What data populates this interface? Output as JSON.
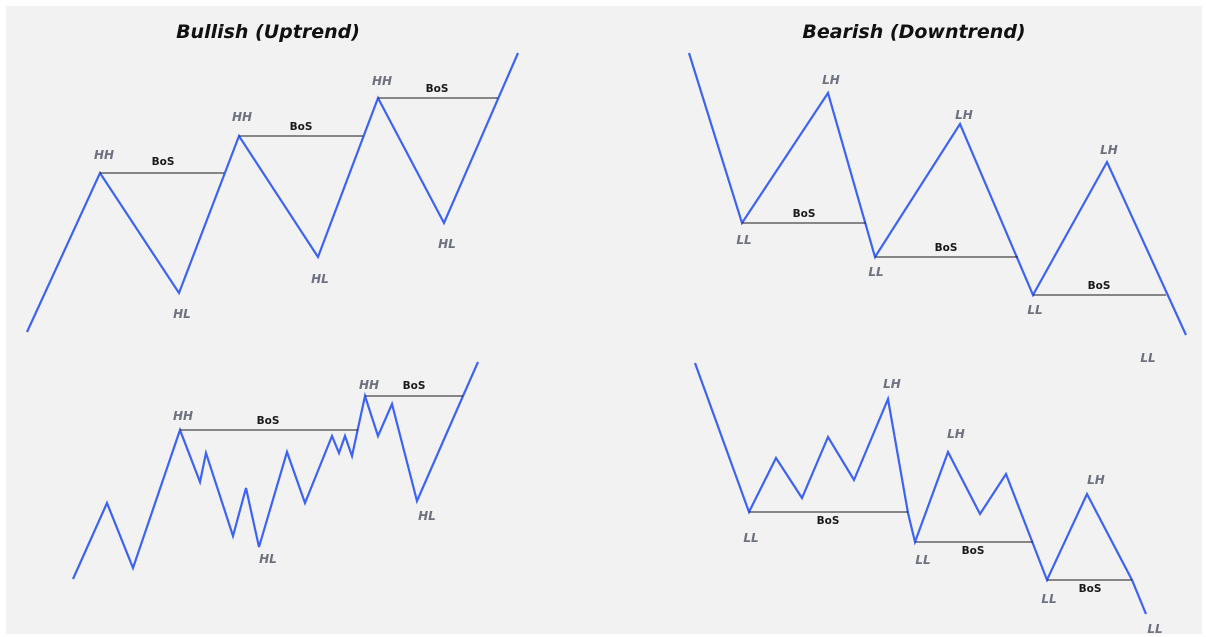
{
  "titles": {
    "bullish": "Bullish (Uptrend)",
    "bearish": "Bearish (Downtrend)"
  },
  "labels": {
    "higher_high": "HH",
    "higher_low": "HL",
    "lower_high": "LH",
    "lower_low": "LL",
    "break_of_structure": "BoS"
  },
  "colors": {
    "price_line": "#3d63f5",
    "background": "#f2f2f2",
    "bos_line": "#1a1a1a",
    "swing_label": "#6d7180"
  }
}
